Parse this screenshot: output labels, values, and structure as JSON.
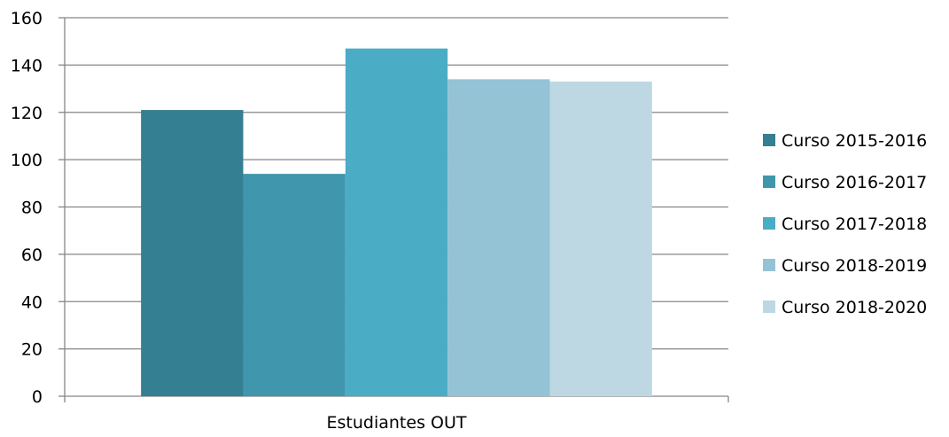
{
  "chart_data": {
    "type": "bar",
    "categories": [
      "Estudiantes OUT"
    ],
    "series": [
      {
        "name": "Curso 2015-2016",
        "values": [
          121
        ],
        "color": "#357F92"
      },
      {
        "name": "Curso 2016-2017",
        "values": [
          94
        ],
        "color": "#4096AD"
      },
      {
        "name": "Curso 2017-2018",
        "values": [
          147
        ],
        "color": "#4BACC6"
      },
      {
        "name": "Curso 2018-2019",
        "values": [
          134
        ],
        "color": "#93C3D5"
      },
      {
        "name": "Curso 2018-2020",
        "values": [
          133
        ],
        "color": "#BDD8E3"
      }
    ],
    "ylim": [
      0,
      160
    ],
    "yticks": [
      0,
      20,
      40,
      60,
      80,
      100,
      120,
      140,
      160
    ],
    "grid": true,
    "legend": "right"
  }
}
